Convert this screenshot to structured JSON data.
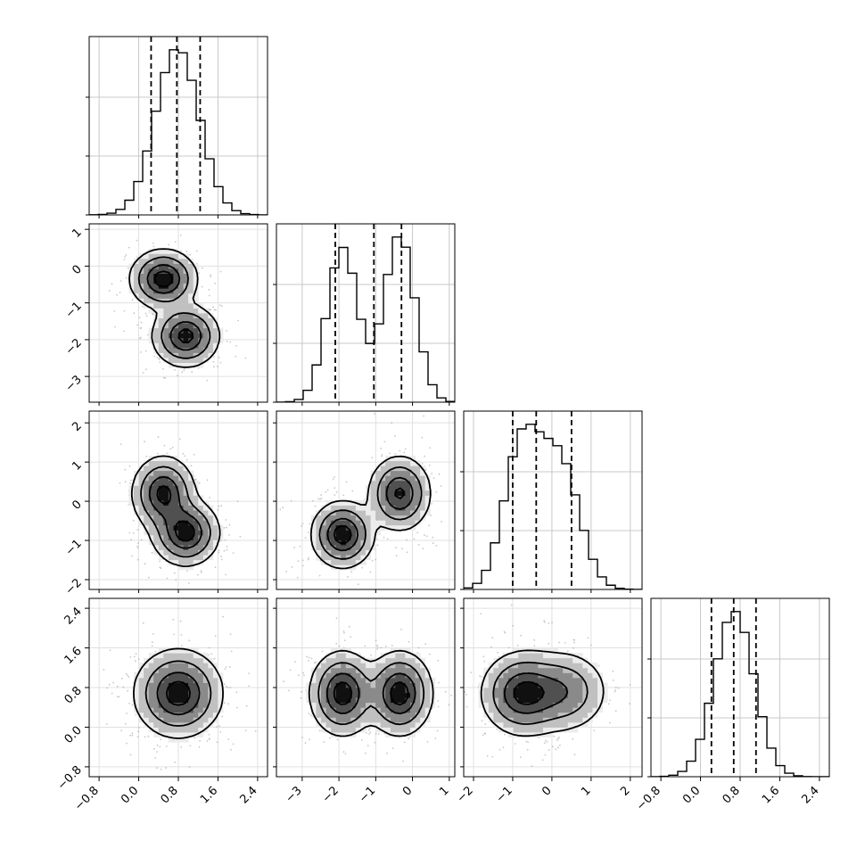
{
  "chart_data": {
    "type": "corner",
    "grid": true,
    "variables": [
      {
        "range": [
          -1.0,
          2.6
        ],
        "ticks": [
          "−0.8",
          "0.0",
          "0.8",
          "1.6",
          "2.4"
        ],
        "tick_values": [
          -0.8,
          0.0,
          0.8,
          1.6,
          2.4
        ],
        "quantiles": [
          0.25,
          0.77,
          1.24
        ],
        "modes": [
          {
            "mu": 0.78,
            "sd": 0.44,
            "w": 1
          }
        ]
      },
      {
        "range": [
          -3.7,
          1.15
        ],
        "ticks": [
          "−3",
          "−2",
          "−1",
          "0",
          "1"
        ],
        "tick_values": [
          -3,
          -2,
          -1,
          0,
          1
        ],
        "quantiles": [
          -2.1,
          -1.05,
          -0.3
        ],
        "modes": [
          {
            "mu": -1.9,
            "sd": 0.42,
            "w": 0.48
          },
          {
            "mu": -0.35,
            "sd": 0.42,
            "w": 0.52
          }
        ]
      },
      {
        "range": [
          -2.25,
          2.3
        ],
        "ticks": [
          "−2",
          "−1",
          "0",
          "1",
          "2"
        ],
        "tick_values": [
          -2,
          -1,
          0,
          1,
          2
        ],
        "quantiles": [
          -1.0,
          -0.4,
          0.5
        ],
        "modes": [
          {
            "mu": -0.78,
            "sd": 0.45,
            "w": 0.5
          },
          {
            "mu": 0.2,
            "sd": 0.5,
            "w": 0.5
          }
        ]
      },
      {
        "range": [
          -1.0,
          2.6
        ],
        "ticks": [
          "−0.8",
          "0.0",
          "0.8",
          "1.6",
          "2.4"
        ],
        "tick_values": [
          -0.8,
          0.0,
          0.8,
          1.6,
          2.4
        ],
        "quantiles": [
          0.22,
          0.67,
          1.12
        ],
        "modes": [
          {
            "mu": 0.68,
            "sd": 0.4,
            "w": 1
          }
        ]
      }
    ],
    "pair_modes": {
      "1-0": [
        {
          "mx": 0.5,
          "my": -0.35,
          "sx": 0.32,
          "sy": 0.38,
          "w": 0.5
        },
        {
          "mx": 0.95,
          "my": -1.9,
          "sx": 0.32,
          "sy": 0.4,
          "w": 0.5
        }
      ],
      "2-0": [
        {
          "mx": 0.5,
          "my": 0.2,
          "sx": 0.3,
          "sy": 0.45,
          "w": 0.5
        },
        {
          "mx": 0.95,
          "my": -0.8,
          "sx": 0.32,
          "sy": 0.4,
          "w": 0.5
        }
      ],
      "2-1": [
        {
          "mx": -1.9,
          "my": -0.85,
          "sx": 0.4,
          "sy": 0.4,
          "w": 0.5
        },
        {
          "mx": -0.35,
          "my": 0.2,
          "sx": 0.4,
          "sy": 0.45,
          "w": 0.5
        }
      ],
      "3-0": [
        {
          "mx": 0.8,
          "my": 0.68,
          "sx": 0.42,
          "sy": 0.42,
          "w": 1
        }
      ],
      "3-1": [
        {
          "mx": -1.9,
          "my": 0.68,
          "sx": 0.42,
          "sy": 0.4,
          "w": 0.5
        },
        {
          "mx": -0.35,
          "my": 0.68,
          "sx": 0.42,
          "sy": 0.4,
          "w": 0.5
        }
      ],
      "3-2": [
        {
          "mx": -0.75,
          "my": 0.68,
          "sx": 0.5,
          "sy": 0.4,
          "w": 0.6
        },
        {
          "mx": 0.3,
          "my": 0.72,
          "sx": 0.55,
          "sy": 0.4,
          "w": 0.4
        }
      ]
    }
  }
}
